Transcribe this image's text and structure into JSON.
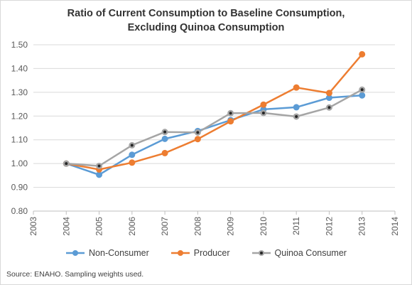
{
  "chart_data": {
    "type": "line",
    "title_lines": [
      "Ratio of Current Consumption to Baseline Consumption,",
      "Excluding Quinoa Consumption"
    ],
    "xlabel": "",
    "ylabel": "",
    "xlim": [
      2003,
      2014
    ],
    "ylim": [
      0.8,
      1.5
    ],
    "x_ticks": [
      "2003",
      "2004",
      "2005",
      "2006",
      "2007",
      "2008",
      "2009",
      "2010",
      "2011",
      "2012",
      "2013",
      "2014"
    ],
    "y_ticks": [
      "0.80",
      "0.90",
      "1.00",
      "1.10",
      "1.20",
      "1.30",
      "1.40",
      "1.50"
    ],
    "grid": "horizontal",
    "legend_position": "bottom",
    "x": [
      2004,
      2005,
      2006,
      2007,
      2008,
      2009,
      2010,
      2011,
      2012,
      2013
    ],
    "series": [
      {
        "name": "Non-Consumer",
        "color": "#5b9bd5",
        "marker": "circle",
        "values": [
          1.0,
          0.953,
          1.037,
          1.104,
          1.137,
          1.183,
          1.228,
          1.237,
          1.277,
          1.287
        ]
      },
      {
        "name": "Producer",
        "color": "#ed7d31",
        "marker": "circle",
        "values": [
          1.0,
          0.975,
          1.004,
          1.044,
          1.103,
          1.178,
          1.248,
          1.32,
          1.297,
          1.46
        ]
      },
      {
        "name": "Quinoa Consumer",
        "color": "#a5a5a5",
        "marker": "dot-circle",
        "values": [
          1.0,
          0.99,
          1.077,
          1.133,
          1.131,
          1.212,
          1.213,
          1.198,
          1.236,
          1.311
        ]
      }
    ]
  },
  "source_note": "Source: ENAHO. Sampling weights used."
}
